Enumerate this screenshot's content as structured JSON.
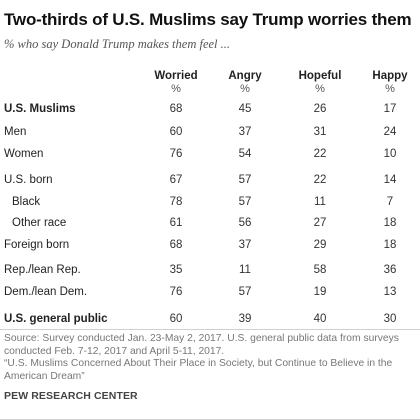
{
  "title": "Two-thirds of U.S. Muslims say Trump worries them",
  "subtitle": "% who say Donald Trump makes them feel ...",
  "chart_data": {
    "type": "table",
    "columns": [
      "Worried",
      "Angry",
      "Hopeful",
      "Happy"
    ],
    "unit_label": "%",
    "rows": [
      {
        "label": "U.S. Muslims",
        "values": [
          68,
          45,
          26,
          17
        ],
        "bold": true,
        "indent": false
      },
      {
        "label": "Men",
        "values": [
          60,
          37,
          31,
          24
        ],
        "bold": false,
        "indent": false
      },
      {
        "label": "Women",
        "values": [
          76,
          54,
          22,
          10
        ],
        "bold": false,
        "indent": false
      },
      {
        "label": "U.S. born",
        "values": [
          67,
          57,
          22,
          14
        ],
        "bold": false,
        "indent": false
      },
      {
        "label": "Black",
        "values": [
          78,
          57,
          11,
          7
        ],
        "bold": false,
        "indent": true
      },
      {
        "label": "Other race",
        "values": [
          61,
          56,
          27,
          18
        ],
        "bold": false,
        "indent": true
      },
      {
        "label": "Foreign born",
        "values": [
          68,
          37,
          29,
          18
        ],
        "bold": false,
        "indent": false
      },
      {
        "label": "Rep./lean Rep.",
        "values": [
          35,
          11,
          58,
          36
        ],
        "bold": false,
        "indent": false
      },
      {
        "label": "Dem./lean Dem.",
        "values": [
          76,
          57,
          19,
          13
        ],
        "bold": false,
        "indent": false
      },
      {
        "label": "U.S. general public",
        "values": [
          60,
          39,
          40,
          30
        ],
        "bold": true,
        "indent": false
      }
    ]
  },
  "source": {
    "line1": "Source: Survey conducted Jan. 23-May 2, 2017. U.S. general public data from surveys",
    "line2": "conducted Feb. 7-12, 2017 and April 5-11, 2017.",
    "line3": "“U.S. Muslims Concerned About Their Place in Society, but Continue to Believe in the",
    "line4": "American Dream”"
  },
  "brand": "PEW RESEARCH CENTER"
}
